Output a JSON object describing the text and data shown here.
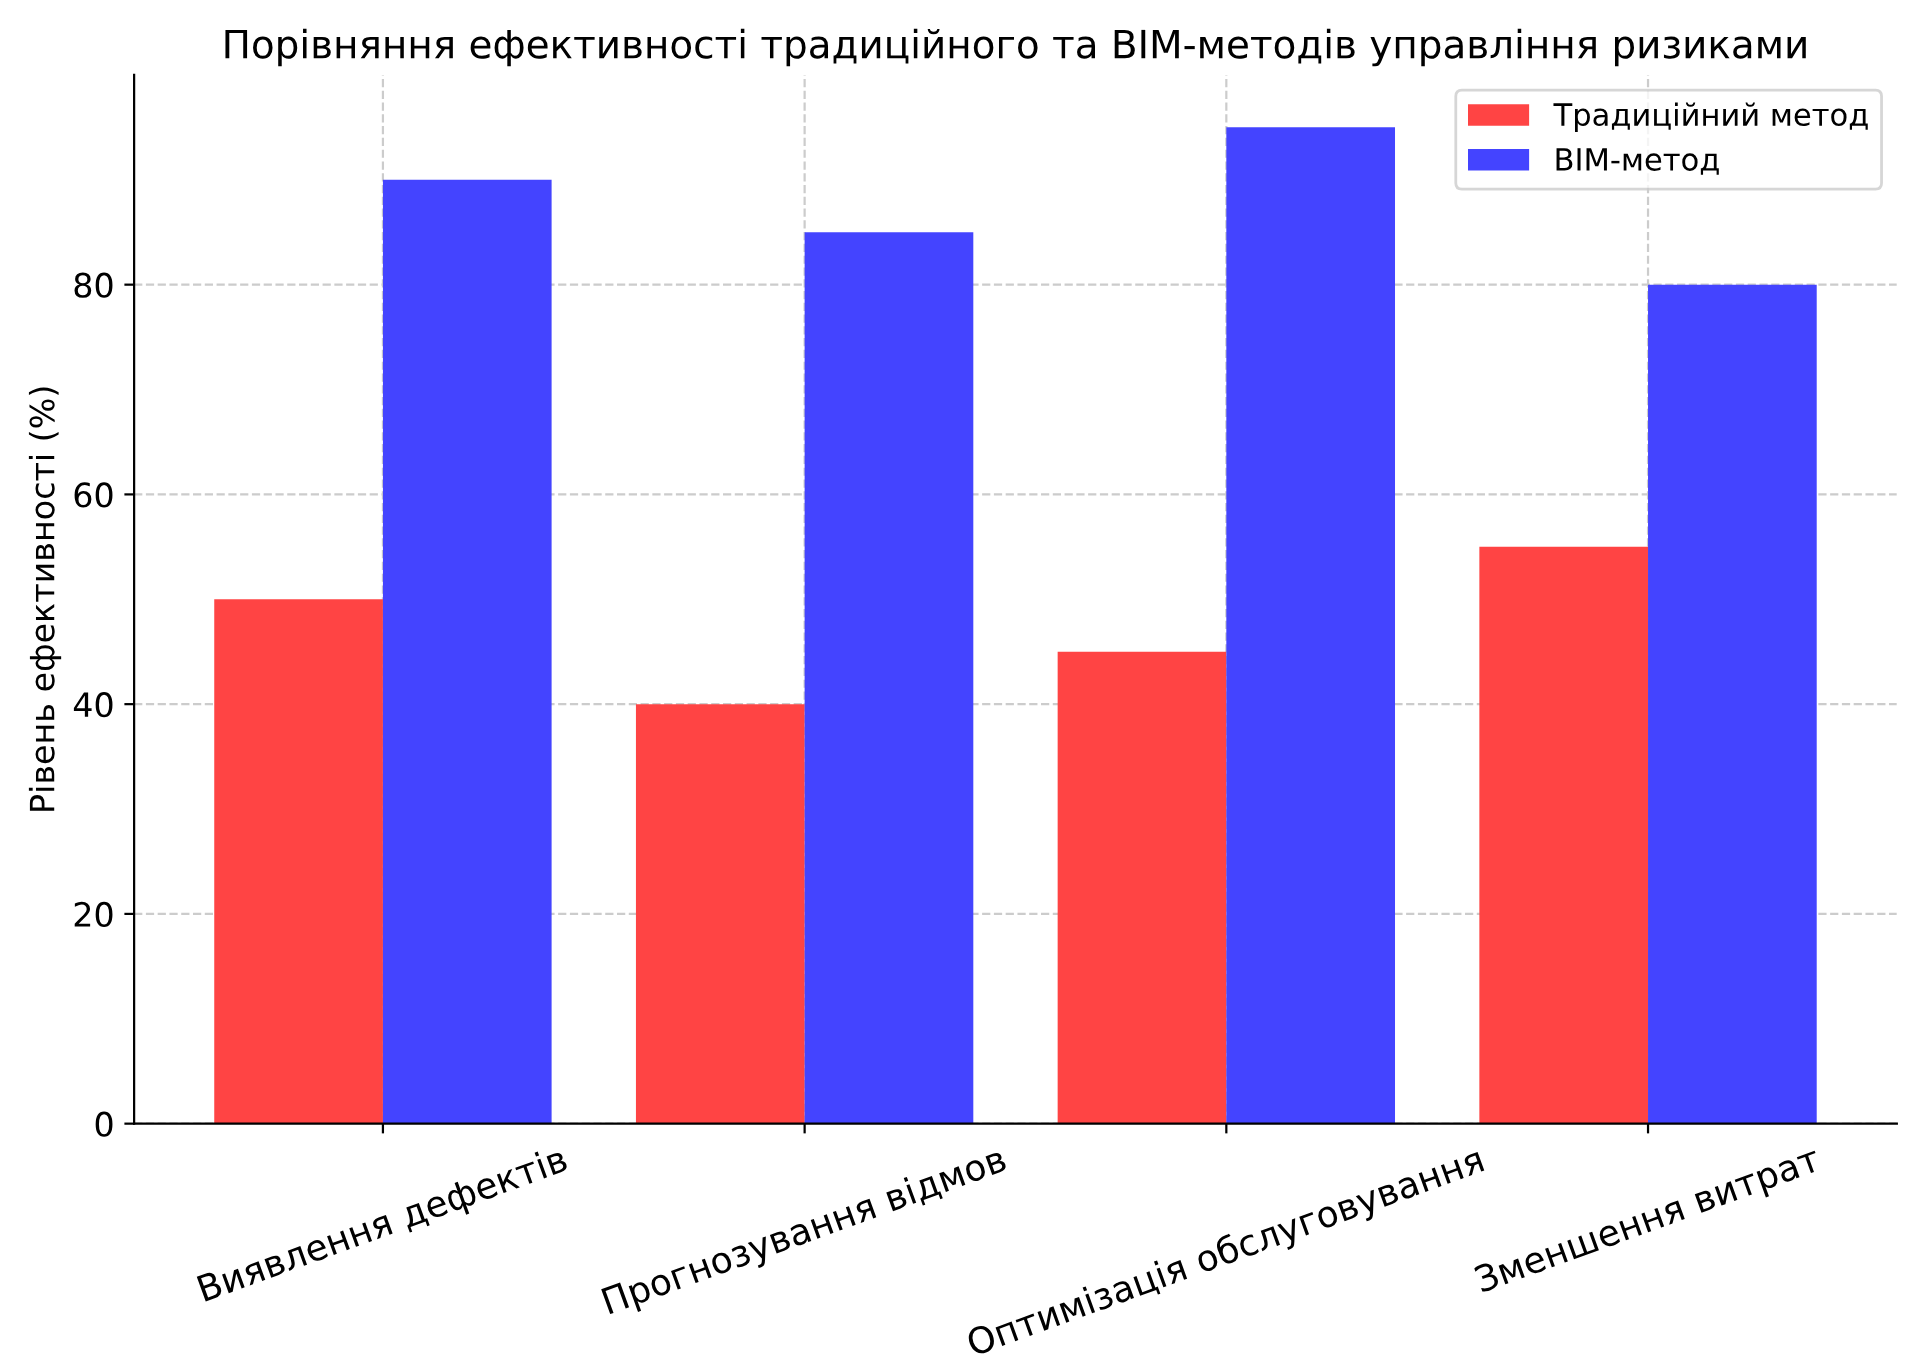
{
  "chart_data": {
    "type": "bar",
    "title": "Порівняння ефективності традиційного та BIM-методів управління ризиками",
    "ylabel": "Рівень ефективності (%)",
    "categories": [
      "Виявлення дефектів",
      "Прогнозування відмов",
      "Оптимізація обслуговування",
      "Зменшення витрат"
    ],
    "series": [
      {
        "name": "Традиційний метод",
        "color": "#ff4444",
        "values": [
          50,
          40,
          45,
          55
        ]
      },
      {
        "name": "BIM-метод",
        "color": "#4444ff",
        "values": [
          90,
          85,
          95,
          80
        ]
      }
    ],
    "ylim": [
      0,
      100
    ],
    "yticks": [
      0,
      20,
      40,
      60,
      80
    ],
    "grid": true,
    "legend": "top right"
  }
}
